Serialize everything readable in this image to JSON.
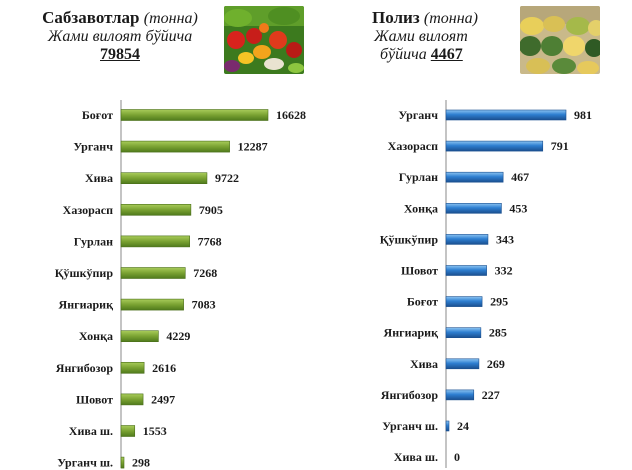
{
  "chart_data": [
    {
      "type": "bar",
      "orientation": "horizontal",
      "title": "Сабзавотлар",
      "unit": "(тонна)",
      "subtitle": "Жами вилоят бўйича",
      "total": "79854",
      "color": "#7aa232",
      "categories": [
        "Боғот",
        "Урганч",
        "Хива",
        "Хазорасп",
        "Гурлан",
        "Қўшкўпир",
        "Янгиариқ",
        "Хонқа",
        "Янгибозор",
        "Шовот",
        "Хива ш.",
        "Урганч ш."
      ],
      "values": [
        16628,
        12287,
        9722,
        7905,
        7768,
        7268,
        7083,
        4229,
        2616,
        2497,
        1553,
        298
      ],
      "labels": [
        "16628",
        "12287",
        "9722",
        "7905",
        "7768",
        "7268",
        "7083",
        "4229",
        "2616",
        "2497",
        "1553",
        "298"
      ],
      "xlim": [
        0,
        16628
      ]
    },
    {
      "type": "bar",
      "orientation": "horizontal",
      "title": "Полиз",
      "unit": "(тонна)",
      "subtitle_line1": "Жами вилоят",
      "subtitle_line2": "бўйича",
      "total": "4467",
      "color": "#2e7fd1",
      "categories": [
        "Урганч",
        "Хазорасп",
        "Гурлан",
        "Хонқа",
        "Қўшкўпир",
        "Шовот",
        "Боғот",
        "Янгиариқ",
        "Хива",
        "Янгибозор",
        "Урганч ш.",
        "Хива ш."
      ],
      "values": [
        981,
        791,
        467,
        453,
        343,
        332,
        295,
        285,
        269,
        227,
        24,
        0
      ],
      "labels": [
        "981",
        "791",
        "467",
        "453",
        "343",
        "332",
        "295",
        "285",
        "269",
        "227",
        "24",
        "0"
      ],
      "xlim": [
        0,
        981
      ]
    }
  ]
}
